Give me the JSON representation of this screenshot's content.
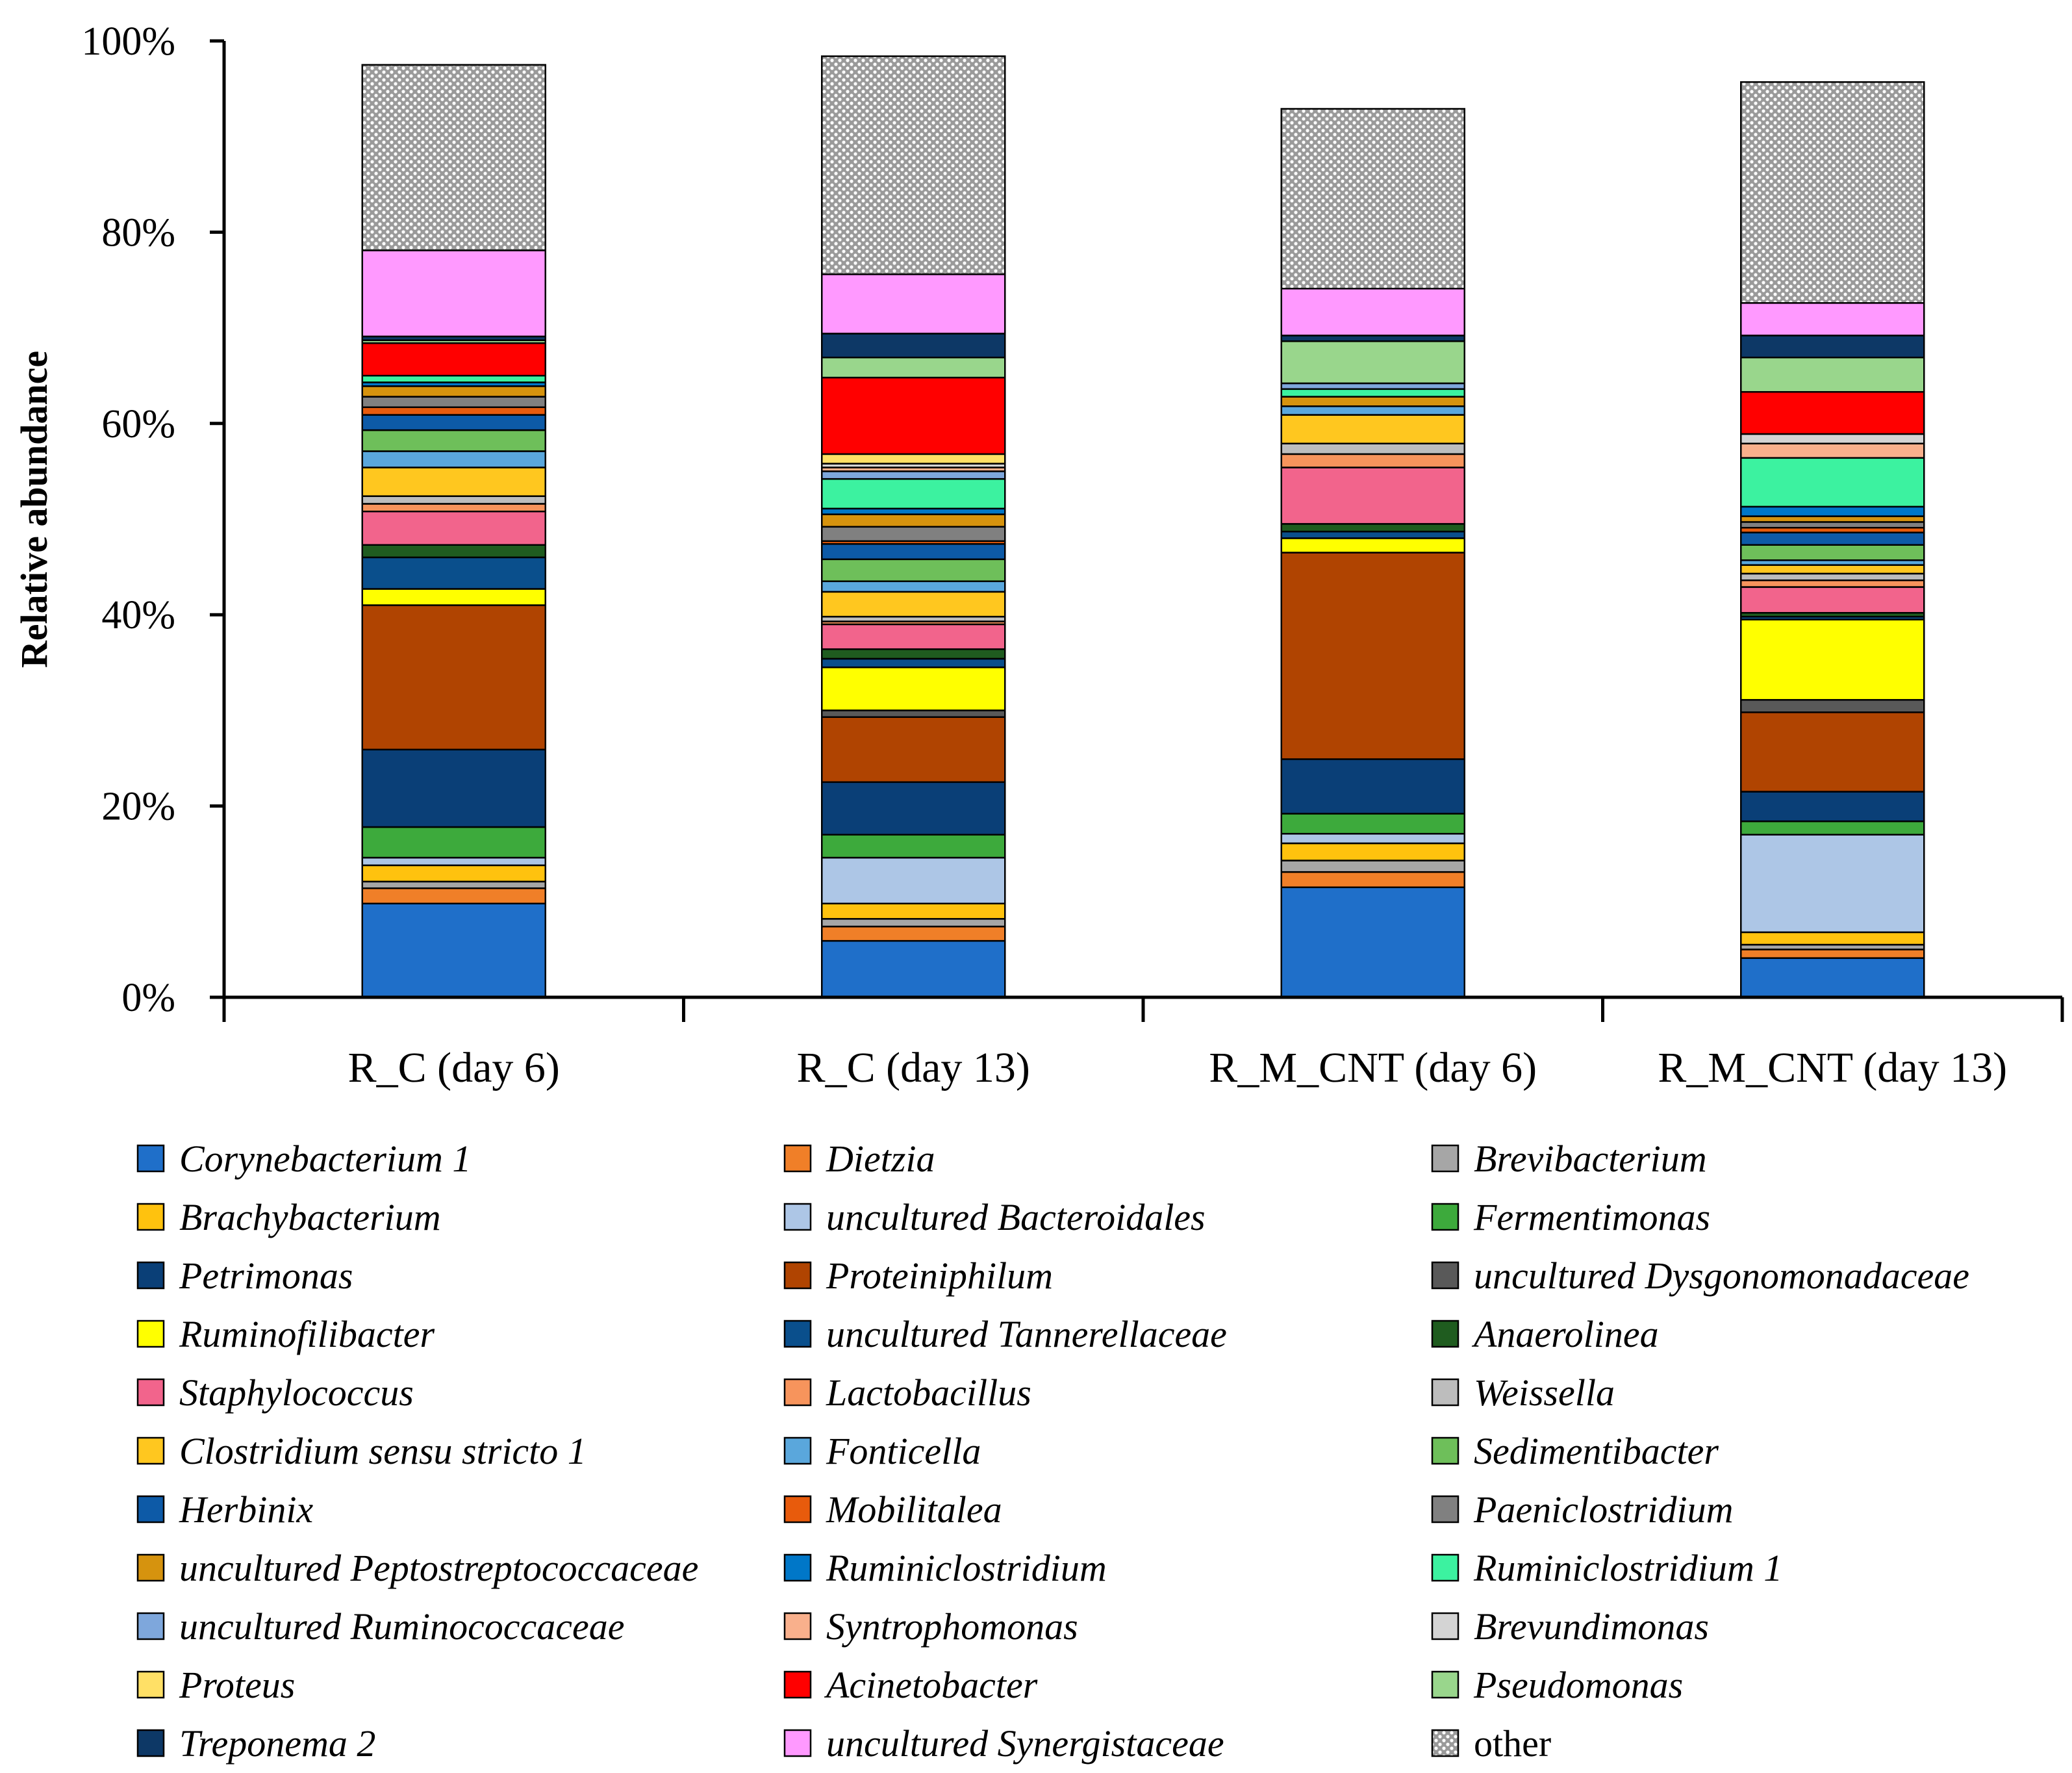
{
  "chart_data": {
    "type": "bar",
    "stacked": true,
    "ylabel": "Relative abundance",
    "ylim": [
      0,
      100
    ],
    "yticks": [
      "0%",
      "20%",
      "40%",
      "60%",
      "80%",
      "100%"
    ],
    "categories": [
      "R_C (day 6)",
      "R_C (day 13)",
      "R_M_CNT (day 6)",
      "R_M_CNT (day 13)"
    ],
    "legend_columns": 3,
    "series": [
      {
        "name": "Corynebacterium 1",
        "color": "#1f6fc9",
        "values": [
          9.8,
          5.9,
          11.5,
          4.1
        ]
      },
      {
        "name": "Dietzia",
        "color": "#f07f28",
        "values": [
          1.6,
          1.5,
          1.6,
          0.9
        ]
      },
      {
        "name": "Brevibacterium",
        "color": "#a6a6a6",
        "values": [
          0.7,
          0.8,
          1.2,
          0.5
        ]
      },
      {
        "name": "Brachybacterium",
        "color": "#ffc20e",
        "values": [
          1.7,
          1.6,
          1.8,
          1.3
        ]
      },
      {
        "name": "uncultured Bacteroidales",
        "color": "#adc6e6",
        "values": [
          0.8,
          4.8,
          1.0,
          10.2
        ]
      },
      {
        "name": "Fermentimonas",
        "color": "#3daa3c",
        "values": [
          3.2,
          2.4,
          2.1,
          1.4
        ]
      },
      {
        "name": "Petrimonas",
        "color": "#0a3f77",
        "values": [
          8.1,
          5.5,
          5.7,
          3.1
        ]
      },
      {
        "name": "Proteiniphilum",
        "color": "#b04401",
        "values": [
          15.1,
          6.8,
          21.6,
          8.3
        ]
      },
      {
        "name": "uncultured Dysgonomonadaceae",
        "color": "#595959",
        "values": [
          0.0,
          0.7,
          0.0,
          1.3
        ]
      },
      {
        "name": "Ruminofilibacter",
        "color": "#ffff00",
        "values": [
          1.7,
          4.5,
          1.5,
          8.4
        ]
      },
      {
        "name": "uncultured Tannerellaceae",
        "color": "#0a4f8c",
        "values": [
          3.3,
          0.9,
          0.7,
          0.3
        ]
      },
      {
        "name": "Anaerolinea",
        "color": "#1f5c1f",
        "values": [
          1.3,
          1.0,
          0.8,
          0.4
        ]
      },
      {
        "name": "Staphylococcus",
        "color": "#f2648c",
        "values": [
          3.5,
          2.6,
          5.9,
          2.7
        ]
      },
      {
        "name": "Lactobacillus",
        "color": "#f7945c",
        "values": [
          0.8,
          0.3,
          1.4,
          0.7
        ]
      },
      {
        "name": "Weissella",
        "color": "#bdbdbd",
        "values": [
          0.8,
          0.5,
          1.1,
          0.7
        ]
      },
      {
        "name": "Clostridium sensu stricto 1",
        "color": "#ffc71f",
        "values": [
          3.0,
          2.6,
          3.0,
          0.9
        ]
      },
      {
        "name": "Fonticella",
        "color": "#5aa7dc",
        "values": [
          1.7,
          1.1,
          0.9,
          0.5
        ]
      },
      {
        "name": "Sedimentibacter",
        "color": "#6ebf5a",
        "values": [
          2.2,
          2.3,
          0.0,
          1.6
        ]
      },
      {
        "name": "Herbinix",
        "color": "#0d5aa7",
        "values": [
          1.6,
          1.6,
          0.0,
          1.3
        ]
      },
      {
        "name": "Mobilitalea",
        "color": "#e85b0c",
        "values": [
          0.8,
          0.3,
          0.0,
          0.5
        ]
      },
      {
        "name": "Paeniclostridium",
        "color": "#808080",
        "values": [
          1.1,
          1.5,
          0.0,
          0.6
        ]
      },
      {
        "name": "uncultured Peptostreptococcaceae",
        "color": "#d6930e",
        "values": [
          1.1,
          1.3,
          1.0,
          0.6
        ]
      },
      {
        "name": "Ruminiclostridium",
        "color": "#0077c8",
        "values": [
          0.4,
          0.6,
          0.0,
          1.0
        ]
      },
      {
        "name": "Ruminiclostridium 1",
        "color": "#3cf2a0",
        "values": [
          0.7,
          3.1,
          0.8,
          5.1
        ]
      },
      {
        "name": "uncultured Ruminococcaceae",
        "color": "#7ea7dc",
        "values": [
          0.0,
          0.8,
          0.6,
          0.0
        ]
      },
      {
        "name": "Syntrophomonas",
        "color": "#f9b08c",
        "values": [
          0.0,
          0.4,
          0.0,
          1.5
        ]
      },
      {
        "name": "Brevundimonas",
        "color": "#d4d4d4",
        "values": [
          0.0,
          0.4,
          0.0,
          1.0
        ]
      },
      {
        "name": "Proteus",
        "color": "#ffe066",
        "values": [
          0.0,
          1.0,
          0.0,
          0.0
        ]
      },
      {
        "name": "Acinetobacter",
        "color": "#ff0000",
        "values": [
          3.4,
          8.0,
          0.0,
          4.4
        ]
      },
      {
        "name": "Pseudomonas",
        "color": "#99d68c",
        "values": [
          0.3,
          2.1,
          4.4,
          3.6
        ]
      },
      {
        "name": "Treponema 2",
        "color": "#0d3866",
        "values": [
          0.4,
          2.5,
          0.6,
          2.3
        ]
      },
      {
        "name": "uncultured Synergistaceae",
        "color": "#ff99ff",
        "values": [
          9.0,
          6.2,
          4.9,
          3.4
        ]
      },
      {
        "name": "other",
        "color": "#8c8c8c",
        "pattern": "dotted",
        "values": [
          19.4,
          22.8,
          18.8,
          23.1
        ]
      }
    ]
  }
}
